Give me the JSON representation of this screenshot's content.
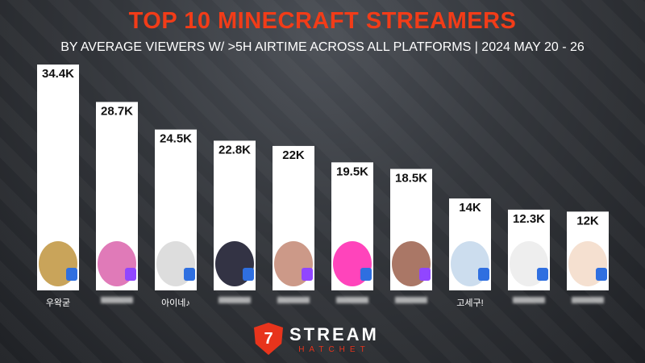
{
  "chart_data": {
    "type": "bar",
    "title": "TOP 10 MINECRAFT STREAMERS",
    "subtitle": "BY AVERAGE VIEWERS W/ >5H AIRTIME ACROSS ALL PLATFORMS | 2024 MAY 20 - 26",
    "categories": [
      "우왁굳",
      "",
      "아이네♪",
      "",
      "",
      "",
      "",
      "고세구!",
      "",
      ""
    ],
    "values": [
      34400,
      28700,
      24500,
      22800,
      22000,
      19500,
      18500,
      14000,
      12300,
      12000
    ],
    "labels": [
      "34.4K",
      "28.7K",
      "24.5K",
      "22.8K",
      "22K",
      "19.5K",
      "18.5K",
      "14K",
      "12.3K",
      "12K"
    ],
    "platforms": [
      "soop",
      "twitch",
      "soop",
      "soop",
      "twitch",
      "soop",
      "twitch",
      "soop",
      "soop",
      "soop"
    ],
    "ylim": [
      0,
      36000
    ],
    "grid": false
  },
  "colors": {
    "title": "#f23c18",
    "twitch": "#9146ff",
    "soop": "#2f6fe0",
    "bar": "#ffffff"
  },
  "brand": {
    "name": "STREAM",
    "sub": "HATCHET"
  }
}
